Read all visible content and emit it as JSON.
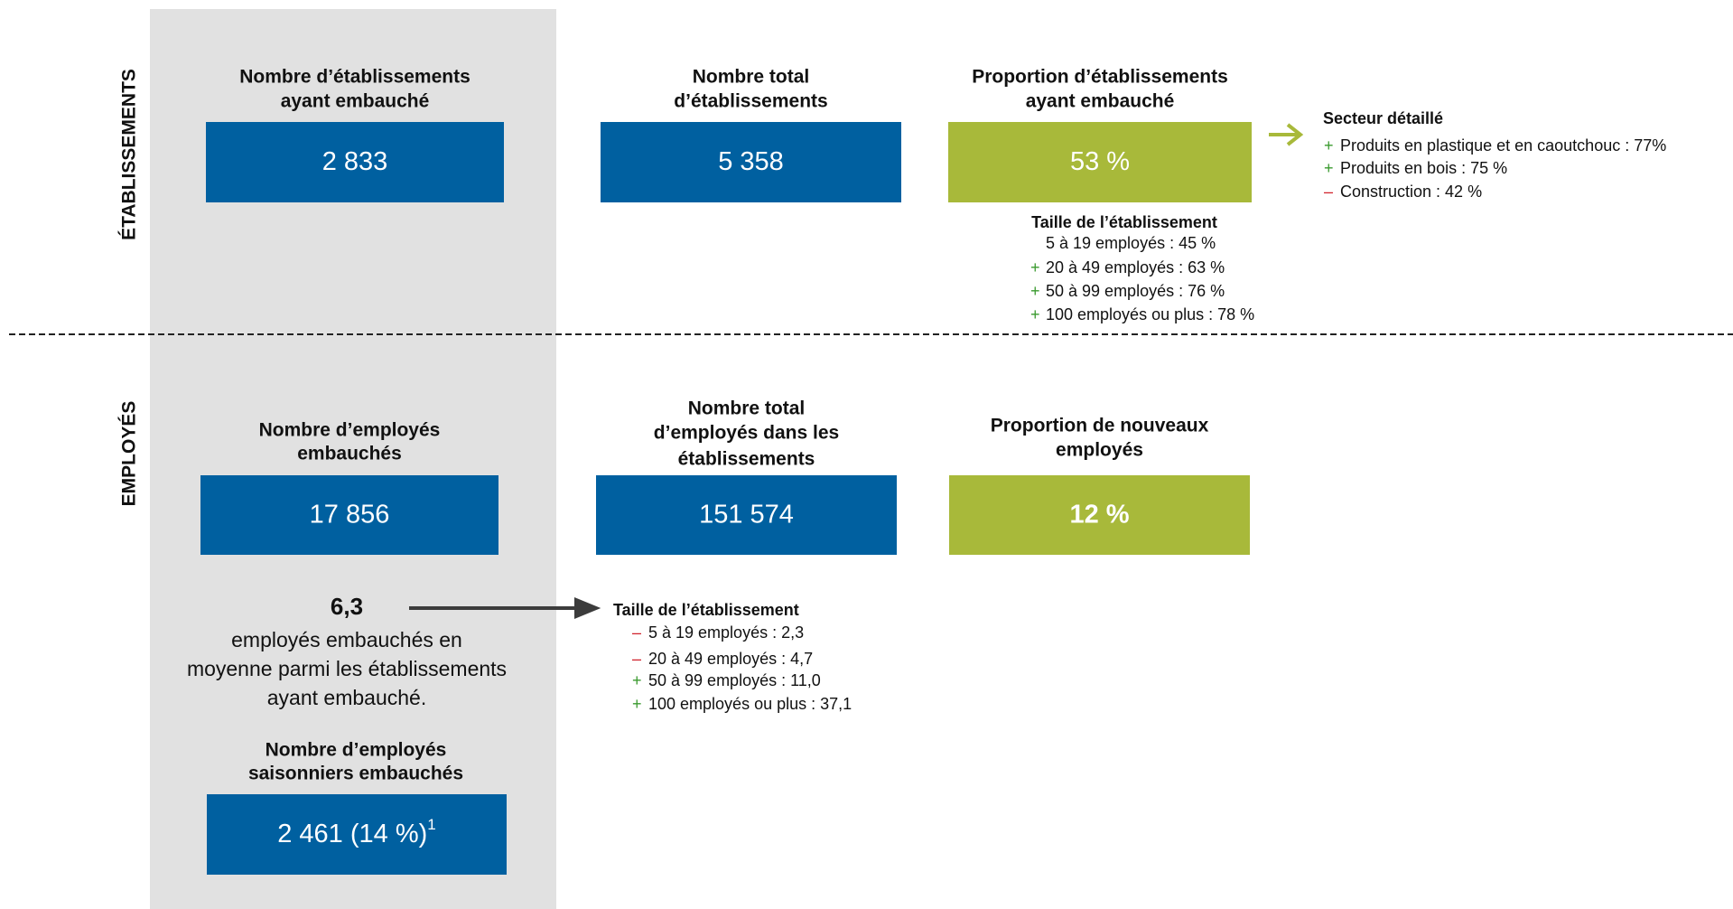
{
  "sections": [
    {
      "label": "ÉTABLISSEMENTS",
      "boxes": [
        {
          "title": [
            "Nombre d’établissements",
            "ayant embauché"
          ],
          "value": "2 833"
        },
        {
          "title": [
            "Nombre total",
            "d’établissements"
          ],
          "value": "5 358"
        },
        {
          "title": [
            "Proportion d’établissements",
            "ayant embauché"
          ],
          "value": "53 %"
        }
      ],
      "sector": {
        "title": "Secteur détaillé",
        "items": [
          {
            "sign": "+",
            "text": "Produits en plastique et en caoutchouc : 77%"
          },
          {
            "sign": "+",
            "text": "Produits en bois : 75 %"
          },
          {
            "sign": "–",
            "text": "Construction : 42 %"
          }
        ]
      },
      "size": {
        "title": "Taille de l’établissement",
        "items": [
          {
            "text": "5 à 19 employés : 45 %"
          },
          {
            "sign": "+",
            "text": "20 à 49 employés : 63 %"
          },
          {
            "sign": "+",
            "text": "50 à 99 employés : 76 %"
          },
          {
            "sign": "+",
            "text": "100 employés ou plus : 78 %"
          }
        ]
      }
    },
    {
      "label": "EMPLOYÉS",
      "boxes": [
        {
          "title": [
            "Nombre d’employés",
            "embauchés"
          ],
          "value": "17 856"
        },
        {
          "title": [
            "Nombre total",
            "d’employés dans les",
            "établissements"
          ],
          "value": "151 574"
        },
        {
          "title": [
            "Proportion de nouveaux",
            "employés"
          ],
          "value": "12 %"
        }
      ],
      "average": {
        "value": "6,3",
        "text": [
          "employés embauchés en",
          "moyenne parmi les établissements",
          "ayant embauché."
        ]
      },
      "size": {
        "title": "Taille de l’établissement",
        "items": [
          {
            "sign": "–",
            "text": "5 à 19 employés : 2,3"
          },
          {
            "sign": "–",
            "text": "20 à 49 employés : 4,7"
          },
          {
            "sign": "+",
            "text": "50 à 99 employés : 11,0"
          },
          {
            "sign": "+",
            "text": "100 employés ou plus : 37,1"
          }
        ]
      },
      "seasonal": {
        "title": [
          "Nombre d’employés",
          "saisonniers embauchés"
        ],
        "value": "2 461 (14 %)",
        "note": "1"
      }
    }
  ]
}
